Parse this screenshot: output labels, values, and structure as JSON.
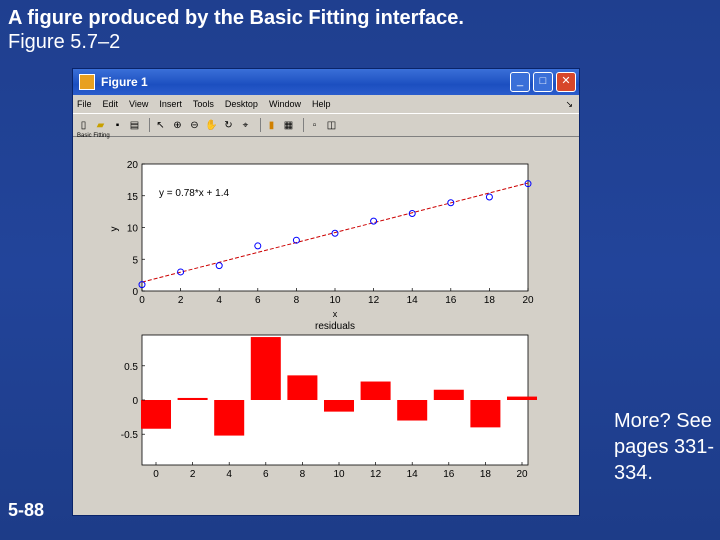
{
  "slide": {
    "title_line1": "A figure produced by the Basic Fitting interface.",
    "title_line2": "Figure 5.7–2",
    "number": "5-88",
    "more_text": "More? See pages 331-334."
  },
  "window": {
    "title": "Figure 1",
    "buttons": {
      "minimize": "_",
      "maximize": "□",
      "close": "✕"
    },
    "menu": [
      "File",
      "Edit",
      "View",
      "Insert",
      "Tools",
      "Desktop",
      "Window",
      "Help"
    ],
    "menu_arrow": "↘",
    "toolbar_icons": [
      "new-file-icon",
      "open-folder-icon",
      "save-icon",
      "print-icon",
      "pointer-icon",
      "zoom-in-icon",
      "zoom-out-icon",
      "pan-icon",
      "rotate-icon",
      "data-cursor-icon",
      "colorbar-icon",
      "legend-icon",
      "plot-tools-hide-icon",
      "plot-tools-show-icon"
    ],
    "figure_label": "Basic Fitting"
  },
  "chart_data": [
    {
      "type": "scatter",
      "title": "",
      "xlabel": "x",
      "ylabel": "y",
      "xlim": [
        0,
        20
      ],
      "ylim": [
        0,
        20
      ],
      "xticks": [
        "0",
        "2",
        "4",
        "6",
        "8",
        "10",
        "12",
        "14",
        "16",
        "18",
        "20"
      ],
      "yticks": [
        "0",
        "5",
        "10",
        "15",
        "20"
      ],
      "annotation": "y = 0.78*x + 1.4",
      "series": [
        {
          "x": [
            0,
            2,
            4,
            6,
            8,
            10,
            12,
            14,
            16,
            18,
            20
          ],
          "y": [
            1.0,
            3.0,
            4.0,
            7.1,
            8.0,
            9.1,
            11.0,
            12.2,
            13.9,
            14.8,
            16.9
          ],
          "marker": "circle",
          "color": "#0000ff"
        },
        {
          "x": [
            0,
            20
          ],
          "y": [
            1.4,
            17.0
          ],
          "style": "dashed-line",
          "color": "#cc0000"
        }
      ],
      "grid": false
    },
    {
      "type": "bar",
      "title": "residuals",
      "categories": [
        "0",
        "2",
        "4",
        "6",
        "8",
        "10",
        "12",
        "14",
        "16",
        "18",
        "20"
      ],
      "values": [
        -0.42,
        0.03,
        -0.52,
        0.92,
        0.36,
        -0.17,
        0.27,
        -0.3,
        0.15,
        -0.4,
        0.05
      ],
      "ylim": [
        -0.95,
        0.95
      ],
      "yticks": [
        "0.5",
        "0",
        "-0.5"
      ],
      "color": "#ff0000",
      "grid": false
    }
  ]
}
